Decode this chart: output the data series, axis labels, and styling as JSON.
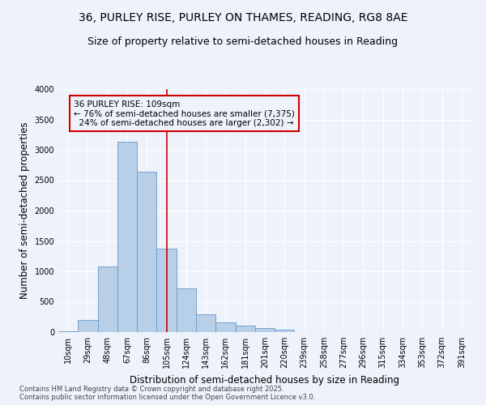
{
  "title_line1": "36, PURLEY RISE, PURLEY ON THAMES, READING, RG8 8AE",
  "title_line2": "Size of property relative to semi-detached houses in Reading",
  "xlabel": "Distribution of semi-detached houses by size in Reading",
  "ylabel": "Number of semi-detached properties",
  "categories": [
    "10sqm",
    "29sqm",
    "48sqm",
    "67sqm",
    "86sqm",
    "105sqm",
    "124sqm",
    "143sqm",
    "162sqm",
    "181sqm",
    "201sqm",
    "220sqm",
    "239sqm",
    "258sqm",
    "277sqm",
    "296sqm",
    "315sqm",
    "334sqm",
    "353sqm",
    "372sqm",
    "391sqm"
  ],
  "values": [
    15,
    200,
    1080,
    3130,
    2640,
    1380,
    720,
    295,
    165,
    105,
    65,
    45,
    5,
    3,
    2,
    1,
    0,
    0,
    0,
    0,
    0
  ],
  "bar_color": "#b8cfe8",
  "bar_edge_color": "#6699cc",
  "vline_index": 5,
  "vline_color": "#cc0000",
  "annotation_box_edge_color": "#cc0000",
  "marker_label": "36 PURLEY RISE: 109sqm",
  "pct_smaller": 76,
  "n_smaller": 7375,
  "pct_larger": 24,
  "n_larger": 2302,
  "ylim": [
    0,
    4000
  ],
  "yticks": [
    0,
    500,
    1000,
    1500,
    2000,
    2500,
    3000,
    3500,
    4000
  ],
  "background_color": "#eef2fb",
  "grid_color": "#ffffff",
  "footer_text": "Contains HM Land Registry data © Crown copyright and database right 2025.\nContains public sector information licensed under the Open Government Licence v3.0.",
  "title_fontsize": 10,
  "subtitle_fontsize": 9,
  "axis_label_fontsize": 8.5,
  "tick_fontsize": 7,
  "annotation_fontsize": 7.5,
  "footer_fontsize": 6
}
